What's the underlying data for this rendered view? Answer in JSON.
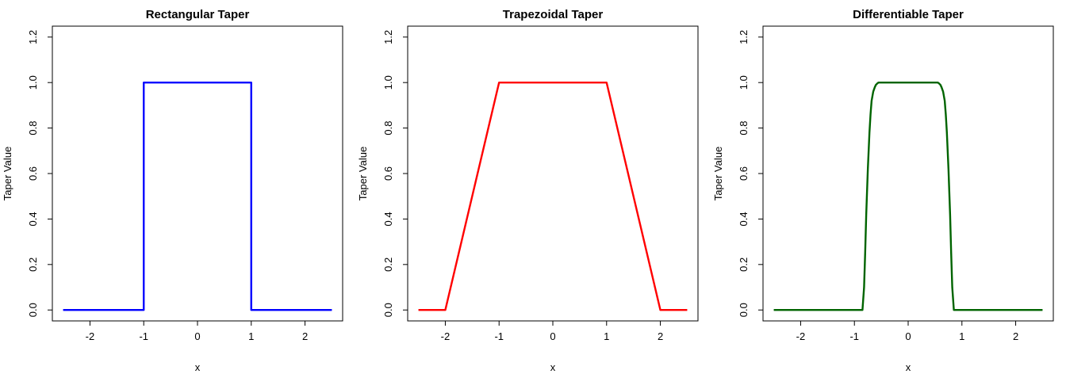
{
  "chart_data": [
    {
      "type": "line",
      "title": "Rectangular Taper",
      "xlabel": "x",
      "ylabel": "Taper Value",
      "xlim": [
        -2.5,
        2.5
      ],
      "ylim": [
        0,
        1.2
      ],
      "xticks": [
        -2,
        -1,
        0,
        1,
        2
      ],
      "xtick_labels": [
        "-2",
        "-1",
        "0",
        "1",
        "2"
      ],
      "yticks": [
        0,
        0.2,
        0.4,
        0.6,
        0.8,
        1,
        1.2
      ],
      "ytick_labels": [
        "0.0",
        "0.2",
        "0.4",
        "0.6",
        "0.8",
        "1.0",
        "1.2"
      ],
      "grid": false,
      "color": "#0000ff",
      "x": [
        -2.5,
        -1,
        -1,
        1,
        1,
        2.5
      ],
      "y": [
        0,
        0,
        1,
        1,
        0,
        0
      ]
    },
    {
      "type": "line",
      "title": "Trapezoidal Taper",
      "xlabel": "x",
      "ylabel": "Taper Value",
      "xlim": [
        -2.5,
        2.5
      ],
      "ylim": [
        0,
        1.2
      ],
      "xticks": [
        -2,
        -1,
        0,
        1,
        2
      ],
      "xtick_labels": [
        "-2",
        "-1",
        "0",
        "1",
        "2"
      ],
      "yticks": [
        0,
        0.2,
        0.4,
        0.6,
        0.8,
        1,
        1.2
      ],
      "ytick_labels": [
        "0.0",
        "0.2",
        "0.4",
        "0.6",
        "0.8",
        "1.0",
        "1.2"
      ],
      "grid": false,
      "color": "#ff0000",
      "x": [
        -2.5,
        -2,
        -1,
        1,
        2,
        2.5
      ],
      "y": [
        0,
        0,
        1,
        1,
        0,
        0
      ]
    },
    {
      "type": "line",
      "title": "Differentiable Taper",
      "xlabel": "x",
      "ylabel": "Taper Value",
      "xlim": [
        -2.5,
        2.5
      ],
      "ylim": [
        0,
        1.2
      ],
      "xticks": [
        -2,
        -1,
        0,
        1,
        2
      ],
      "xtick_labels": [
        "-2",
        "-1",
        "0",
        "1",
        "2"
      ],
      "yticks": [
        0,
        0.2,
        0.4,
        0.6,
        0.8,
        1,
        1.2
      ],
      "ytick_labels": [
        "0.0",
        "0.2",
        "0.4",
        "0.6",
        "0.8",
        "1.0",
        "1.2"
      ],
      "grid": false,
      "color": "#006400",
      "x": [
        -2.5,
        -0.85,
        -0.82,
        -0.8,
        -0.78,
        -0.75,
        -0.72,
        -0.7,
        -0.68,
        -0.65,
        -0.62,
        -0.6,
        -0.57,
        -0.55,
        -0.5,
        0.5,
        0.55,
        0.57,
        0.6,
        0.62,
        0.65,
        0.68,
        0.7,
        0.72,
        0.75,
        0.78,
        0.8,
        0.82,
        0.85,
        2.5
      ],
      "y": [
        0,
        0,
        0.1,
        0.25,
        0.42,
        0.62,
        0.78,
        0.86,
        0.92,
        0.96,
        0.98,
        0.99,
        0.997,
        1,
        1,
        1,
        1,
        0.997,
        0.99,
        0.98,
        0.96,
        0.92,
        0.86,
        0.78,
        0.62,
        0.42,
        0.25,
        0.1,
        0,
        0
      ]
    }
  ]
}
